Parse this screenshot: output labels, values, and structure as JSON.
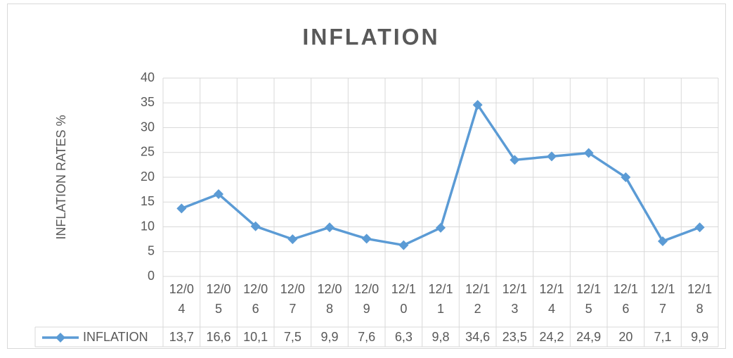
{
  "chart_data": {
    "type": "line",
    "title": "INFLATION",
    "y_label": "INFLATION RATES %",
    "categories": [
      "12/04",
      "12/05",
      "12/06",
      "12/07",
      "12/08",
      "12/09",
      "12/10",
      "12/11",
      "12/12",
      "12/13",
      "12/14",
      "12/15",
      "12/16",
      "12/17",
      "12/18"
    ],
    "series": [
      {
        "name": "INFLATION",
        "color": "#5b9bd5",
        "values": [
          13.7,
          16.6,
          10.1,
          7.5,
          9.9,
          7.6,
          6.3,
          9.8,
          34.6,
          23.5,
          24.2,
          24.9,
          20,
          7.1,
          9.9
        ],
        "value_labels": [
          "13,7",
          "16,6",
          "10,1",
          "7,5",
          "9,9",
          "7,6",
          "6,3",
          "9,8",
          "34,6",
          "23,5",
          "24,2",
          "24,9",
          "20",
          "7,1",
          "9,9"
        ]
      }
    ],
    "ylim": [
      0,
      40
    ],
    "yticks": [
      0,
      5,
      10,
      15,
      20,
      25,
      30,
      35,
      40
    ],
    "grid": true
  }
}
